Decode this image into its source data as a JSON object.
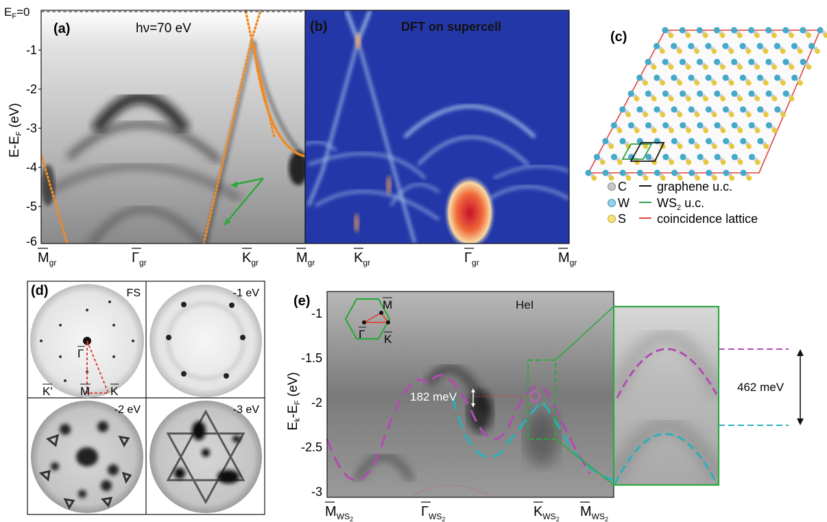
{
  "panel_a": {
    "label": "(a)",
    "photon_energy": "hν=70 eV",
    "ylabel": "E-E",
    "ylabel_sub": "F",
    "ylabel_unit": " (eV)",
    "ef_label": "E",
    "ef_sub": "F",
    "ef_value": "=0",
    "yticks": [
      "-1",
      "-2",
      "-3",
      "-4",
      "-5",
      "-6"
    ],
    "xlabels": [
      {
        "main": "M",
        "sub": "gr"
      },
      {
        "main": "Γ",
        "sub": "gr"
      },
      {
        "main": "K",
        "sub": "gr"
      },
      {
        "main": "M",
        "sub": "gr"
      }
    ]
  },
  "panel_b": {
    "label": "(b)",
    "title": "DFT on supercell",
    "xlabels": [
      {
        "main": "K",
        "sub": "gr"
      },
      {
        "main": "Γ",
        "sub": "gr"
      },
      {
        "main": "M",
        "sub": "gr"
      }
    ]
  },
  "panel_c": {
    "label": "(c)",
    "legend": [
      {
        "atom": "C",
        "line": "graphene u.c.",
        "atom_color": "#c8c8c8",
        "line_color": "#111111"
      },
      {
        "atom": "W",
        "line": "WS",
        "line_sub": "2",
        "line_tail": " u.c.",
        "atom_color": "#8fd3e8",
        "line_color": "#2a9d4a"
      },
      {
        "atom": "S",
        "line": "coincidence lattice",
        "atom_color": "#f4e27a",
        "line_color": "#e0413a"
      }
    ]
  },
  "panel_d": {
    "label": "(d)",
    "quadrants": [
      "FS",
      "-1 eV",
      "-2 eV",
      "-3 eV"
    ],
    "points": {
      "gamma": "Γ",
      "m": "M",
      "k": "K",
      "kprime": "K'"
    }
  },
  "panel_e": {
    "label": "(e)",
    "source": "HeI",
    "ylabel": "E",
    "ylabel_sub1": "k",
    "ylabel_mid": "-E",
    "ylabel_sub2": "F",
    "ylabel_unit": " (eV)",
    "yticks": [
      "-1",
      "-1.5",
      "-2",
      "-2.5",
      "-3"
    ],
    "splitting": "182 meV",
    "inset_points": {
      "m": "M",
      "gamma": "Γ",
      "k": "K"
    },
    "xlabels": [
      {
        "main": "M",
        "sub": "WS",
        "sub2": "2"
      },
      {
        "main": "Γ",
        "sub": "WS",
        "sub2": "2"
      },
      {
        "main": "K",
        "sub": "WS",
        "sub2": "2"
      },
      {
        "main": "M",
        "sub": "WS",
        "sub2": "2"
      }
    ],
    "zoom_gap": "462 meV"
  },
  "colors": {
    "orange": "#f08a24",
    "green": "#2ca83c",
    "magenta": "#b04cb0",
    "cyan": "#27b2b8",
    "red": "#e0413a",
    "dft_blue": "#2437a8"
  }
}
